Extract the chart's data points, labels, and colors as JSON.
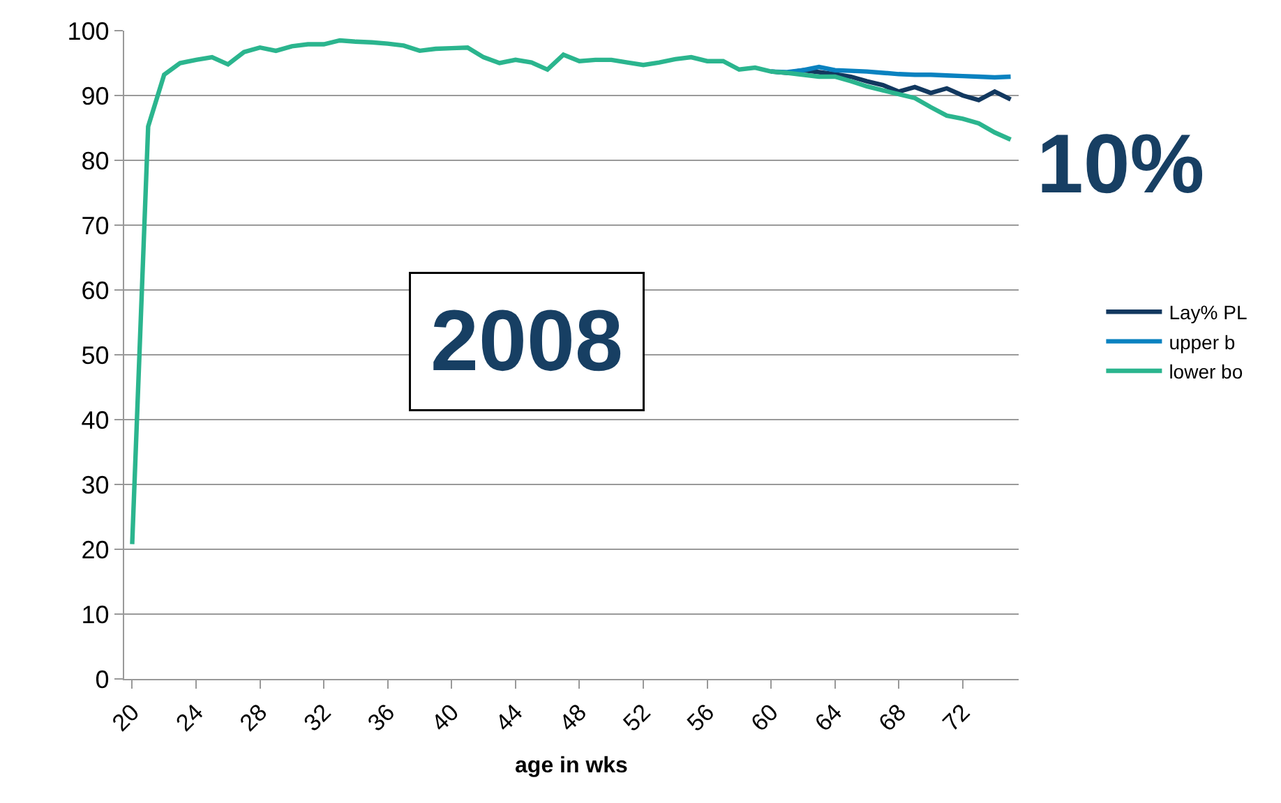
{
  "chart_data": {
    "type": "line",
    "xlabel": "age in wks",
    "x": [
      20,
      21,
      22,
      23,
      24,
      25,
      26,
      27,
      28,
      29,
      30,
      31,
      32,
      33,
      34,
      35,
      36,
      37,
      38,
      39,
      40,
      41,
      42,
      43,
      44,
      45,
      46,
      47,
      48,
      49,
      50,
      51,
      52,
      53,
      54,
      55,
      56,
      57,
      58,
      59,
      60,
      61,
      62,
      63,
      64,
      65,
      66,
      67,
      68,
      69,
      70,
      71,
      72,
      73,
      74,
      75
    ],
    "series": [
      {
        "name": "Lay% PL",
        "color": "#12385f",
        "values": [
          null,
          null,
          null,
          null,
          null,
          null,
          null,
          null,
          null,
          null,
          null,
          null,
          null,
          null,
          null,
          null,
          null,
          null,
          null,
          null,
          null,
          null,
          null,
          null,
          null,
          null,
          null,
          null,
          null,
          null,
          null,
          null,
          null,
          null,
          null,
          null,
          null,
          null,
          null,
          null,
          93.7,
          93.5,
          93.9,
          93.6,
          93.3,
          92.9,
          92.2,
          91.6,
          90.6,
          91.3,
          90.4,
          91.1,
          90.0,
          89.3,
          90.6,
          89.4
        ]
      },
      {
        "name": "upper b",
        "color": "#0a82c0",
        "values": [
          null,
          null,
          null,
          null,
          null,
          null,
          null,
          null,
          null,
          null,
          null,
          null,
          null,
          null,
          null,
          null,
          null,
          null,
          null,
          null,
          null,
          null,
          null,
          null,
          null,
          null,
          null,
          null,
          null,
          null,
          null,
          null,
          null,
          null,
          null,
          null,
          null,
          null,
          null,
          null,
          93.7,
          93.6,
          93.9,
          94.4,
          93.9,
          93.8,
          93.7,
          93.5,
          93.3,
          93.2,
          93.2,
          93.1,
          93.0,
          92.9,
          92.8,
          92.9
        ]
      },
      {
        "name": "lower bo",
        "color": "#2bb58e",
        "values": [
          20.8,
          85.2,
          93.2,
          95.0,
          95.5,
          95.9,
          94.8,
          96.7,
          97.4,
          96.9,
          97.6,
          97.9,
          97.9,
          98.5,
          98.3,
          98.2,
          98.0,
          97.7,
          96.9,
          97.2,
          97.3,
          97.4,
          95.9,
          95.0,
          95.5,
          95.1,
          94.0,
          96.3,
          95.3,
          95.5,
          95.5,
          95.1,
          94.7,
          95.1,
          95.6,
          95.9,
          95.3,
          95.3,
          94.0,
          94.3,
          93.7,
          93.5,
          93.2,
          92.9,
          92.9,
          92.2,
          91.4,
          90.8,
          90.2,
          89.6,
          88.2,
          86.9,
          86.4,
          85.7,
          84.3,
          83.2
        ]
      }
    ],
    "xlim": [
      19.5,
      75.5
    ],
    "xticks": [
      20,
      24,
      28,
      32,
      36,
      40,
      44,
      48,
      52,
      56,
      60,
      64,
      68,
      72
    ],
    "ylim": [
      0,
      100
    ],
    "yticks": [
      0,
      10,
      20,
      30,
      40,
      50,
      60,
      70,
      80,
      90,
      100
    ],
    "grid": "y",
    "legend": "right",
    "marker": "none",
    "line_style": "solid",
    "annotations": [
      "2008",
      "10%"
    ]
  }
}
